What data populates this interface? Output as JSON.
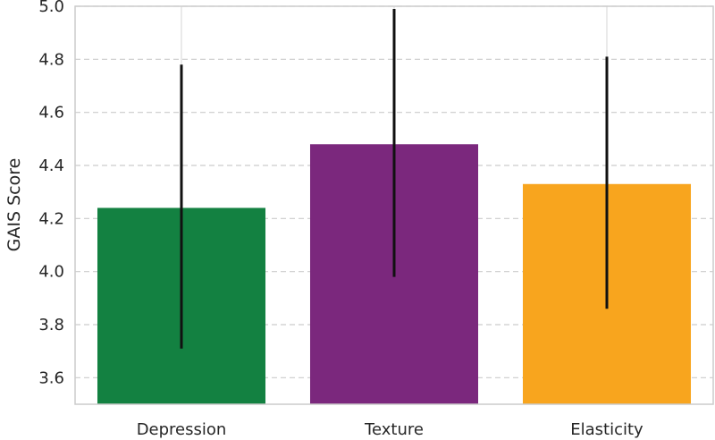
{
  "chart_data": {
    "type": "bar",
    "title": "",
    "xlabel": "",
    "ylabel": "GAIS Score",
    "categories": [
      "Depression",
      "Texture",
      "Elasticity"
    ],
    "values": [
      4.24,
      4.48,
      4.33
    ],
    "error_low": [
      3.71,
      3.98,
      3.86
    ],
    "error_high": [
      4.78,
      4.99,
      4.81
    ],
    "ylim": [
      3.5,
      5.0
    ],
    "yticks": [
      "3.6",
      "3.8",
      "4.0",
      "4.2",
      "4.4",
      "4.6",
      "4.8",
      "5.0"
    ],
    "ytick_values": [
      3.6,
      3.8,
      4.0,
      4.2,
      4.4,
      4.6,
      4.8,
      5.0
    ],
    "grid": "horizontal dashed",
    "colors": [
      "#138141",
      "#7b287d",
      "#f8a51e"
    ],
    "error_color": "#111111"
  }
}
